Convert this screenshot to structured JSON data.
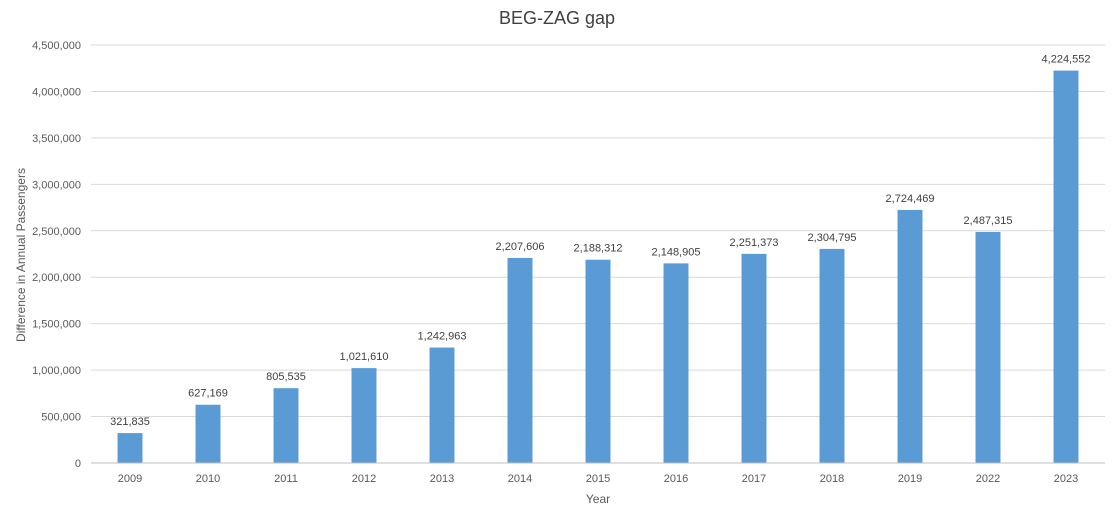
{
  "chart_data": {
    "type": "bar",
    "title": "BEG-ZAG gap",
    "xlabel": "Year",
    "ylabel": "Difference in Annual Passengers",
    "categories": [
      "2009",
      "2010",
      "2011",
      "2012",
      "2013",
      "2014",
      "2015",
      "2016",
      "2017",
      "2018",
      "2019",
      "2022",
      "2023"
    ],
    "values": [
      321835,
      627169,
      805535,
      1021610,
      1242963,
      2207606,
      2188312,
      2148905,
      2251373,
      2304795,
      2724469,
      2487315,
      4224552
    ],
    "value_labels": [
      "321,835",
      "627,169",
      "805,535",
      "1,021,610",
      "1,242,963",
      "2,207,606",
      "2,188,312",
      "2,148,905",
      "2,251,373",
      "2,304,795",
      "2,724,469",
      "2,487,315",
      "4,224,552"
    ],
    "ylim": [
      0,
      4500000
    ],
    "yticks": [
      0,
      500000,
      1000000,
      1500000,
      2000000,
      2500000,
      3000000,
      3500000,
      4000000,
      4500000
    ],
    "ytick_labels": [
      "0",
      "500,000",
      "1,000,000",
      "1,500,000",
      "2,000,000",
      "2,500,000",
      "3,000,000",
      "3,500,000",
      "4,000,000",
      "4,500,000"
    ],
    "grid": true,
    "legend": "none",
    "colors": {
      "bar": "#5b9bd5",
      "grid": "#d9d9d9",
      "axis": "#bfbfbf",
      "text": "#595959",
      "title": "#404040"
    }
  }
}
